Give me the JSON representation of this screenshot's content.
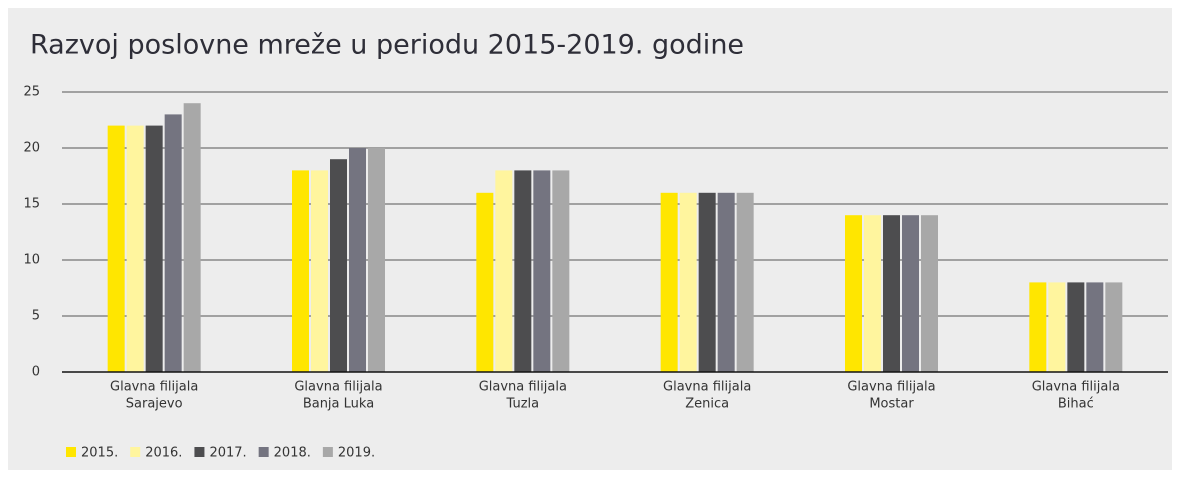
{
  "chart_data": {
    "type": "bar",
    "title": "Razvoj poslovne mreže u periodu 2015-2019. godine",
    "categories": [
      [
        "Glavna filijala",
        "Sarajevo"
      ],
      [
        "Glavna filijala",
        "Banja Luka"
      ],
      [
        "Glavna filijala",
        "Tuzla"
      ],
      [
        "Glavna filijala",
        "Zenica"
      ],
      [
        "Glavna filijala",
        "Mostar"
      ],
      [
        "Glavna filijala",
        "Bihać"
      ]
    ],
    "series": [
      {
        "name": "2015.",
        "color": "#ffe600",
        "values": [
          22,
          18,
          16,
          16,
          14,
          8
        ]
      },
      {
        "name": "2016.",
        "color": "#fff59e",
        "values": [
          22,
          18,
          18,
          16,
          14,
          8
        ]
      },
      {
        "name": "2017.",
        "color": "#4d4d4f",
        "values": [
          22,
          19,
          18,
          16,
          14,
          8
        ]
      },
      {
        "name": "2018.",
        "color": "#747480",
        "values": [
          23,
          20,
          18,
          16,
          14,
          8
        ]
      },
      {
        "name": "2019.",
        "color": "#a8a8a8",
        "values": [
          24,
          20,
          18,
          16,
          14,
          8
        ]
      }
    ],
    "ylim": [
      0,
      25
    ],
    "yticks": [
      0,
      5,
      10,
      15,
      20,
      25
    ],
    "grid": true,
    "legend": "bottom-left"
  }
}
